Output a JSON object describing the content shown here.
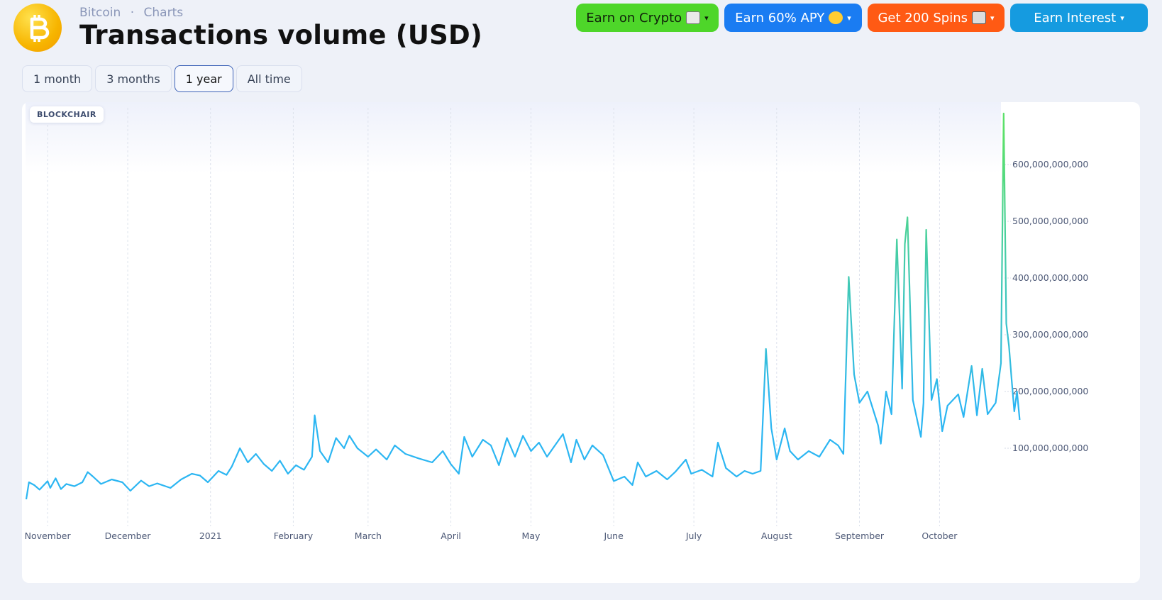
{
  "breadcrumb": {
    "item1": "Bitcoin",
    "sep": "·",
    "item2": "Charts"
  },
  "page_title": "Transactions volume (USD)",
  "promos": [
    {
      "label": "Earn on Crypto",
      "icon": "cash-icon",
      "color": "#4ed62a"
    },
    {
      "label": "Earn 60% APY",
      "icon": "star-eyes-emoji-icon",
      "color": "#1a7cf2"
    },
    {
      "label": "Get 200 Spins",
      "icon": "slot-machine-icon",
      "color": "#ff5a14"
    },
    {
      "label": "Earn Interest",
      "icon": "",
      "color": "#159be0"
    }
  ],
  "caret": "▾",
  "tabs": [
    {
      "label": "1 month",
      "active": false
    },
    {
      "label": "3 months",
      "active": false
    },
    {
      "label": "1 year",
      "active": true
    },
    {
      "label": "All time",
      "active": false
    }
  ],
  "watermark": "BLOCKCHAIR",
  "chart_data": {
    "type": "line",
    "title": "Transactions volume (USD)",
    "x_range": [
      "2020-10-24",
      "2021-10-24"
    ],
    "ylim": [
      0,
      700000000000
    ],
    "y_ticks": [
      100000000000,
      200000000000,
      300000000000,
      400000000000,
      500000000000,
      600000000000
    ],
    "y_tick_labels": [
      "100,000,000,000",
      "200,000,000,000",
      "300,000,000,000",
      "400,000,000,000",
      "500,000,000,000",
      "600,000,000,000"
    ],
    "x_tick_labels": [
      "November",
      "December",
      "2021",
      "February",
      "March",
      "April",
      "May",
      "June",
      "July",
      "August",
      "September",
      "October"
    ],
    "x_tick_dates": [
      "2020-11-01",
      "2020-12-01",
      "2021-01-01",
      "2021-02-01",
      "2021-03-01",
      "2021-04-01",
      "2021-05-01",
      "2021-06-01",
      "2021-07-01",
      "2021-08-01",
      "2021-09-01",
      "2021-10-01"
    ],
    "grid": "vertical dashed",
    "line_color": "#2cb6f2",
    "peak_color": "#5be06a",
    "series": [
      {
        "name": "",
        "points": [
          [
            "2020-10-24",
            10000000000
          ],
          [
            "2020-10-25",
            40000000000
          ],
          [
            "2020-10-27",
            35000000000
          ],
          [
            "2020-10-29",
            27000000000
          ],
          [
            "2020-11-01",
            42000000000
          ],
          [
            "2020-11-02",
            30000000000
          ],
          [
            "2020-11-04",
            47000000000
          ],
          [
            "2020-11-06",
            28000000000
          ],
          [
            "2020-11-08",
            37000000000
          ],
          [
            "2020-11-11",
            33000000000
          ],
          [
            "2020-11-14",
            40000000000
          ],
          [
            "2020-11-16",
            58000000000
          ],
          [
            "2020-11-18",
            50000000000
          ],
          [
            "2020-11-21",
            37000000000
          ],
          [
            "2020-11-25",
            45000000000
          ],
          [
            "2020-11-29",
            40000000000
          ],
          [
            "2020-12-02",
            25000000000
          ],
          [
            "2020-12-06",
            43000000000
          ],
          [
            "2020-12-09",
            33000000000
          ],
          [
            "2020-12-12",
            38000000000
          ],
          [
            "2020-12-17",
            30000000000
          ],
          [
            "2020-12-21",
            45000000000
          ],
          [
            "2020-12-25",
            55000000000
          ],
          [
            "2020-12-28",
            52000000000
          ],
          [
            "2020-12-31",
            40000000000
          ],
          [
            "2021-01-04",
            60000000000
          ],
          [
            "2021-01-07",
            53000000000
          ],
          [
            "2021-01-09",
            68000000000
          ],
          [
            "2021-01-12",
            100000000000
          ],
          [
            "2021-01-15",
            75000000000
          ],
          [
            "2021-01-18",
            90000000000
          ],
          [
            "2021-01-21",
            72000000000
          ],
          [
            "2021-01-24",
            60000000000
          ],
          [
            "2021-01-27",
            78000000000
          ],
          [
            "2021-01-30",
            55000000000
          ],
          [
            "2021-02-02",
            70000000000
          ],
          [
            "2021-02-05",
            62000000000
          ],
          [
            "2021-02-08",
            85000000000
          ],
          [
            "2021-02-09",
            158000000000
          ],
          [
            "2021-02-11",
            95000000000
          ],
          [
            "2021-02-14",
            75000000000
          ],
          [
            "2021-02-17",
            118000000000
          ],
          [
            "2021-02-20",
            100000000000
          ],
          [
            "2021-02-22",
            122000000000
          ],
          [
            "2021-02-25",
            100000000000
          ],
          [
            "2021-03-01",
            85000000000
          ],
          [
            "2021-03-04",
            98000000000
          ],
          [
            "2021-03-08",
            80000000000
          ],
          [
            "2021-03-11",
            105000000000
          ],
          [
            "2021-03-15",
            90000000000
          ],
          [
            "2021-03-20",
            82000000000
          ],
          [
            "2021-03-25",
            75000000000
          ],
          [
            "2021-03-29",
            95000000000
          ],
          [
            "2021-04-01",
            72000000000
          ],
          [
            "2021-04-04",
            55000000000
          ],
          [
            "2021-04-06",
            120000000000
          ],
          [
            "2021-04-09",
            85000000000
          ],
          [
            "2021-04-13",
            115000000000
          ],
          [
            "2021-04-16",
            105000000000
          ],
          [
            "2021-04-19",
            70000000000
          ],
          [
            "2021-04-22",
            118000000000
          ],
          [
            "2021-04-25",
            85000000000
          ],
          [
            "2021-04-28",
            122000000000
          ],
          [
            "2021-05-01",
            95000000000
          ],
          [
            "2021-05-04",
            110000000000
          ],
          [
            "2021-05-07",
            85000000000
          ],
          [
            "2021-05-10",
            105000000000
          ],
          [
            "2021-05-13",
            125000000000
          ],
          [
            "2021-05-16",
            75000000000
          ],
          [
            "2021-05-18",
            115000000000
          ],
          [
            "2021-05-21",
            80000000000
          ],
          [
            "2021-05-24",
            105000000000
          ],
          [
            "2021-05-28",
            88000000000
          ],
          [
            "2021-06-01",
            42000000000
          ],
          [
            "2021-06-05",
            50000000000
          ],
          [
            "2021-06-08",
            35000000000
          ],
          [
            "2021-06-10",
            75000000000
          ],
          [
            "2021-06-13",
            50000000000
          ],
          [
            "2021-06-17",
            60000000000
          ],
          [
            "2021-06-21",
            45000000000
          ],
          [
            "2021-06-24",
            58000000000
          ],
          [
            "2021-06-28",
            80000000000
          ],
          [
            "2021-06-30",
            55000000000
          ],
          [
            "2021-07-04",
            62000000000
          ],
          [
            "2021-07-08",
            50000000000
          ],
          [
            "2021-07-10",
            110000000000
          ],
          [
            "2021-07-13",
            65000000000
          ],
          [
            "2021-07-17",
            50000000000
          ],
          [
            "2021-07-20",
            60000000000
          ],
          [
            "2021-07-23",
            55000000000
          ],
          [
            "2021-07-26",
            60000000000
          ],
          [
            "2021-07-28",
            275000000000
          ],
          [
            "2021-07-30",
            135000000000
          ],
          [
            "2021-08-01",
            80000000000
          ],
          [
            "2021-08-04",
            135000000000
          ],
          [
            "2021-08-06",
            95000000000
          ],
          [
            "2021-08-09",
            80000000000
          ],
          [
            "2021-08-13",
            95000000000
          ],
          [
            "2021-08-17",
            85000000000
          ],
          [
            "2021-08-21",
            115000000000
          ],
          [
            "2021-08-24",
            105000000000
          ],
          [
            "2021-08-26",
            90000000000
          ],
          [
            "2021-08-28",
            402000000000
          ],
          [
            "2021-08-30",
            230000000000
          ],
          [
            "2021-09-01",
            180000000000
          ],
          [
            "2021-09-04",
            200000000000
          ],
          [
            "2021-09-08",
            140000000000
          ],
          [
            "2021-09-09",
            108000000000
          ],
          [
            "2021-09-11",
            200000000000
          ],
          [
            "2021-09-13",
            160000000000
          ],
          [
            "2021-09-15",
            468000000000
          ],
          [
            "2021-09-17",
            205000000000
          ],
          [
            "2021-09-18",
            460000000000
          ],
          [
            "2021-09-19",
            507000000000
          ],
          [
            "2021-09-21",
            185000000000
          ],
          [
            "2021-09-24",
            120000000000
          ],
          [
            "2021-09-25",
            180000000000
          ],
          [
            "2021-09-26",
            485000000000
          ],
          [
            "2021-09-28",
            185000000000
          ],
          [
            "2021-09-30",
            222000000000
          ],
          [
            "2021-10-02",
            130000000000
          ],
          [
            "2021-10-04",
            175000000000
          ],
          [
            "2021-10-08",
            195000000000
          ],
          [
            "2021-10-10",
            155000000000
          ],
          [
            "2021-10-13",
            245000000000
          ],
          [
            "2021-10-15",
            158000000000
          ],
          [
            "2021-10-17",
            240000000000
          ],
          [
            "2021-10-19",
            160000000000
          ],
          [
            "2021-10-22",
            180000000000
          ],
          [
            "2021-10-24",
            250000000000
          ],
          [
            "2021-10-25",
            690000000000
          ],
          [
            "2021-10-26",
            320000000000
          ],
          [
            "2021-10-27",
            280000000000
          ],
          [
            "2021-10-28",
            220000000000
          ],
          [
            "2021-10-29",
            165000000000
          ],
          [
            "2021-10-30",
            200000000000
          ],
          [
            "2021-10-31",
            150000000000
          ]
        ]
      }
    ]
  }
}
